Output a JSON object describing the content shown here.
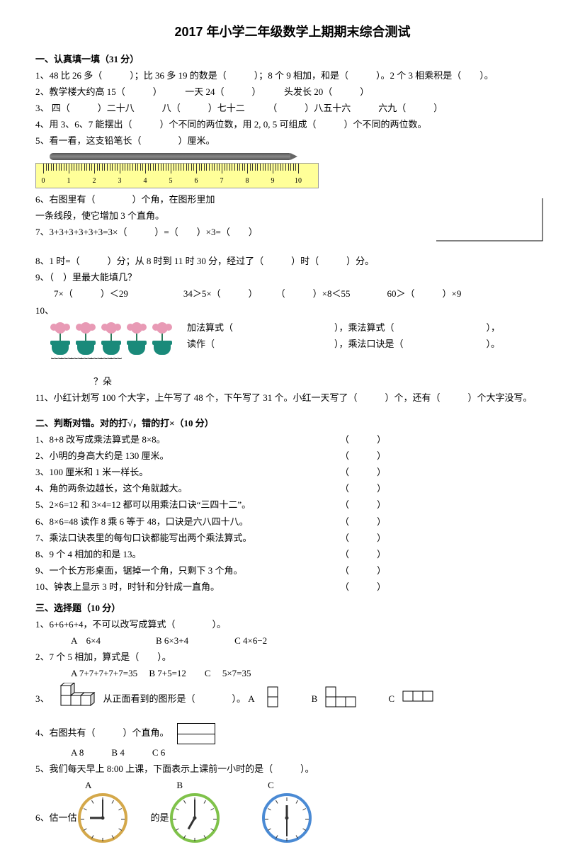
{
  "title": "2017 年小学二年级数学上期期末综合测试",
  "sec1": {
    "head": "一、认真填一填（31 分）",
    "q1": "1、48 比 26 多（　　　）；比 36 多 19 的数是（　　　）；8 个 9 相加，和是（　　　）。2 个 3 相乘积是（　　）。",
    "q2": "2、教学楼大约高 15（　　　）　　　一天 24（　　　）　　　头发长 20（　　　）",
    "q3": "3、 四（　　　）二十八　　　八（　　　）七十二　　　（　　　）八五十六　　　六九（　　　）",
    "q4": "4、用 3、6、7 能摆出（　　　）个不同的两位数，用 2, 0, 5 可组成（　　　）个不同的两位数。",
    "q5": "5、看一看，这支铅笔长（　　　　）厘米。",
    "q6a": "6、右图里有（　　　　）个角，在图形里加",
    "q6b": "一条线段，使它增加 3 个直角。",
    "q7": "7、3+3+3+3+3+3=3×（　　　）=（　　）×3=（　　）",
    "q8": "8、1 时=（　　　）分；从 8 时到 11 时 30 分，经过了（　　　）时（　　　）分。",
    "q9a": "9、（　）里最大能填几？",
    "q9b": "　　7×（　　　）＜29　　　　　　34＞5×（　　　）　　　（　　　）×8＜55　　　　60＞（　　　）×9",
    "q10a": "10、",
    "q10add": "加法算式（　　　　　　　　　　　），乘法算式（　　　　　　　　　　），",
    "q10read": "读作（　　　　　　　　　　　　　），乘法口诀是（　　　　　　　　　）。",
    "q10brace": "︸",
    "q10q": "？朵",
    "q11": "11、小红计划写 100 个大字，上午写了 48 个，下午写了 31 个。小红一天写了（　　　）个，还有（　　　）个大字没写。"
  },
  "sec2": {
    "head": "二、判断对错。对的打√，错的打×（10 分）",
    "items": [
      "1、8+8 改写成乘法算式是 8×8。",
      "2、小明的身高大约是 130 厘米。",
      "3、100 厘米和 1 米一样长。",
      "4、角的两条边越长，这个角就越大。",
      "5、2×6=12 和 3×4=12 都可以用乘法口诀“三四十二”。",
      "6、8×6=48  读作 8 乘 6 等于 48，口诀是六八四十八。",
      "7、乘法口诀表里的每句口诀都能写出两个乘法算式。",
      "8、9 个 4 相加的和是 13。",
      "9、一个长方形桌面，锯掉一个角，只剩下 3 个角。",
      "10、钟表上显示 3 时，时针和分针成一直角。"
    ],
    "paren": "（　　　）"
  },
  "sec3": {
    "head": "三、选择题（10 分）",
    "q1": "1、6+6+6+4，不可以改写成算式（　　　　）。",
    "q1opts": "　　A　6×4　　　　　　B 6×3+4　　　　　C 4×6−2",
    "q2": "2、7 个 5 相加，算式是（　　）。",
    "q2opts": "　　A 7+7+7+7+7=35　 B 7+5=12　　C　 5×7=35",
    "q3a": "3、",
    "q3b": "从正面看到的图形是（　　　　）。 A",
    "q3c": "B",
    "q3d": "C",
    "q4": "4、右图共有（　　　）个直角。",
    "q4opts": "　　A 8　　　B 4　　　C 6",
    "q5": "5、我们每天早上 8:00 上课，下面表示上课前一小时的是（　　　）。",
    "q5letters": [
      "A",
      "B",
      "C"
    ],
    "q6": "6、估一估，右　　　　　　的是（　　　　　　　　　　　　）。"
  },
  "ruler": {
    "labels": [
      "0",
      "1",
      "2",
      "3",
      "4",
      "5",
      "6",
      "7",
      "8",
      "9",
      "10"
    ]
  },
  "clocks": [
    {
      "border": "#d4a84a",
      "hour": 270,
      "min": 0
    },
    {
      "border": "#7fc24a",
      "hour": 210,
      "min": 0
    },
    {
      "border": "#4a8ad4",
      "hour": 0,
      "min": 180
    }
  ]
}
